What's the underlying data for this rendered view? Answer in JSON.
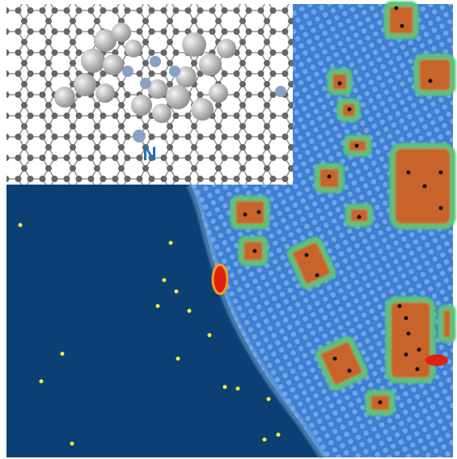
{
  "inset": {
    "label": "N"
  }
}
